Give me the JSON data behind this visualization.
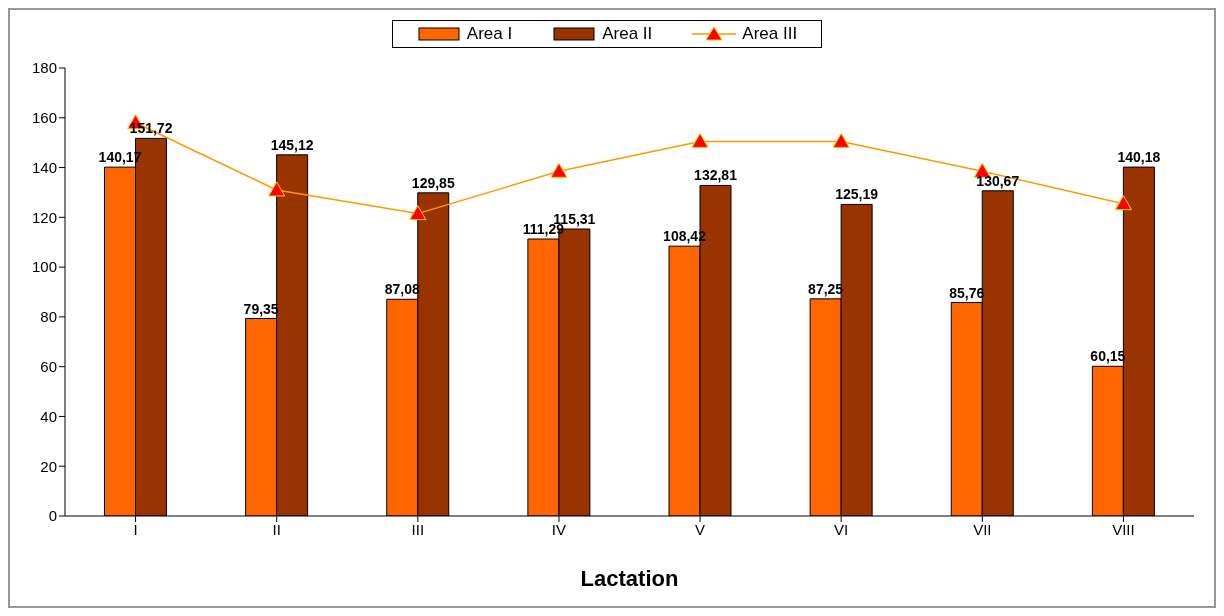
{
  "chart_data": {
    "type": "bar",
    "xlabel": "Lactation",
    "categories": [
      "I",
      "II",
      "III",
      "IV",
      "V",
      "VI",
      "VII",
      "VIII"
    ],
    "series": [
      {
        "name": "Area I",
        "color": "#ff6600",
        "values": [
          140.17,
          79.35,
          87.08,
          111.29,
          108.42,
          87.25,
          85.76,
          60.15
        ],
        "value_labels": [
          "140,17",
          "79,35",
          "87,08",
          "111,29",
          "108,42",
          "87,25",
          "85,76",
          "60,15"
        ]
      },
      {
        "name": "Area II",
        "color": "#993300",
        "values": [
          151.72,
          145.12,
          129.85,
          115.31,
          132.81,
          125.19,
          130.67,
          140.18
        ],
        "value_labels": [
          "151,72",
          "145,12",
          "129,85",
          "115,31",
          "132,81",
          "125,19",
          "130,67",
          "140,18"
        ]
      },
      {
        "name": "Area III",
        "type": "line",
        "color": "#ff9900",
        "marker": "triangle",
        "values": [
          158,
          131,
          121.5,
          138.5,
          150.5,
          150.5,
          138.5,
          125.5
        ]
      }
    ],
    "ylim": [
      0,
      180
    ],
    "yticks": [
      0,
      20,
      40,
      60,
      80,
      100,
      120,
      140,
      160,
      180
    ],
    "grid": false,
    "legend": "top"
  }
}
